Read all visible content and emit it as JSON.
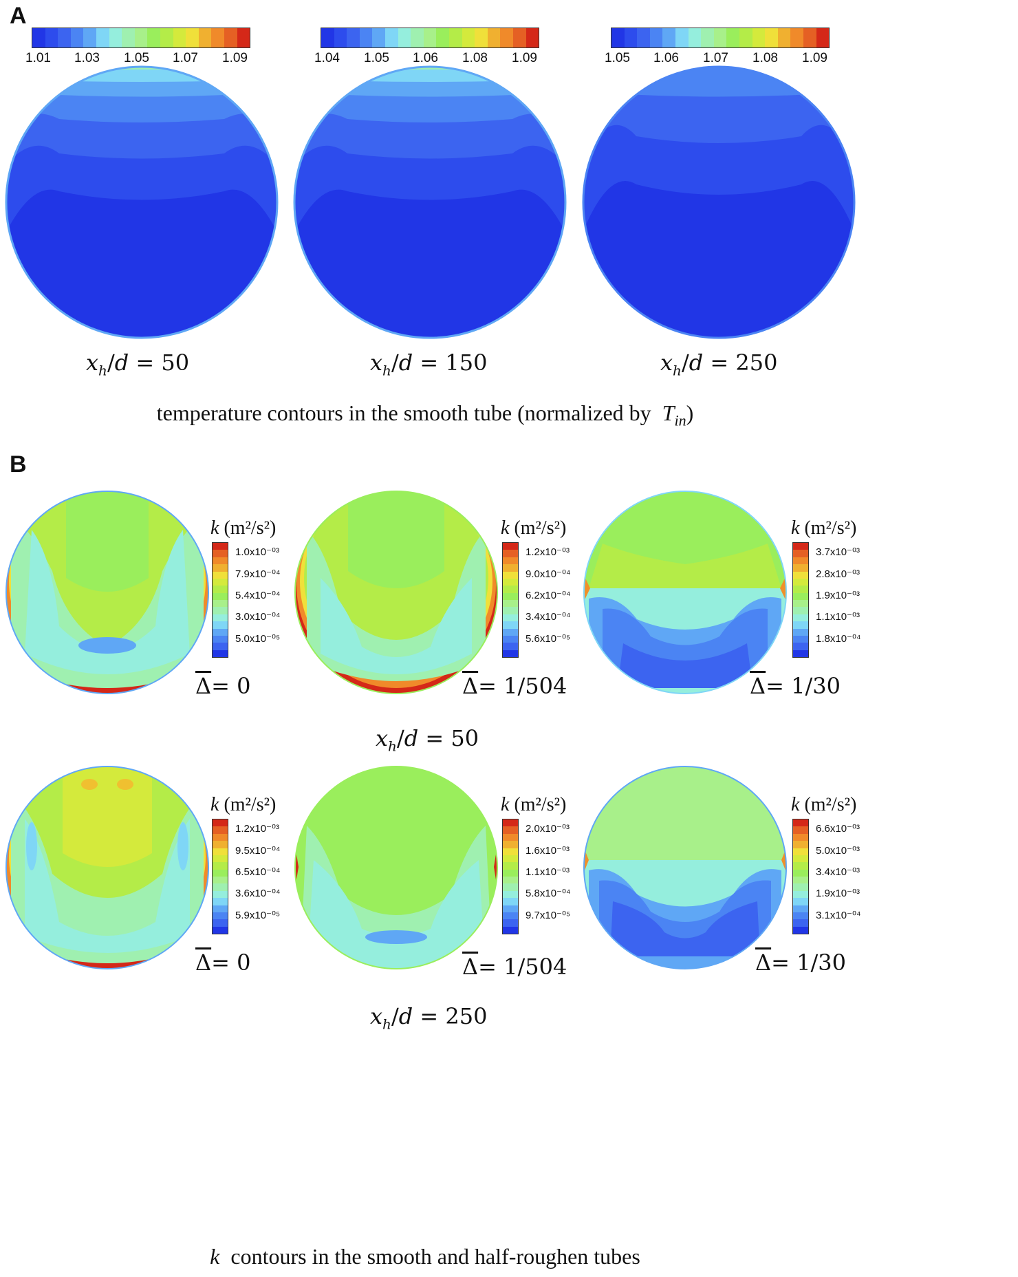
{
  "panel_a": {
    "letter": "A",
    "caption": "temperature contours in the smooth tube (normalized by",
    "caption_var": "T",
    "caption_sub": "in",
    "caption_end": ")",
    "plots": [
      {
        "ticks": [
          "1.01",
          "1.03",
          "1.05",
          "1.07",
          "1.09"
        ],
        "label": "x_h/d = 50",
        "label_num": "50"
      },
      {
        "ticks": [
          "1.04",
          "1.05",
          "1.06",
          "1.08",
          "1.09"
        ],
        "label": "x_h/d = 150",
        "label_num": "150"
      },
      {
        "ticks": [
          "1.05",
          "1.06",
          "1.07",
          "1.08",
          "1.09"
        ],
        "label": "x_h/d = 250",
        "label_num": "250"
      }
    ]
  },
  "panel_b": {
    "letter": "B",
    "unit_label": "k",
    "unit": "(m²/s²)",
    "caption_var": "k",
    "caption": "contours in the smooth and half-roughen tubes",
    "rows": [
      {
        "label_num": "50",
        "plots": [
          {
            "delta": "0",
            "ticks": [
              "1.0x10⁻⁰³",
              "7.9x10⁻⁰⁴",
              "5.4x10⁻⁰⁴",
              "3.0x10⁻⁰⁴",
              "5.0x10⁻⁰⁵"
            ]
          },
          {
            "delta": "1/504",
            "ticks": [
              "1.2x10⁻⁰³",
              "9.0x10⁻⁰⁴",
              "6.2x10⁻⁰⁴",
              "3.4x10⁻⁰⁴",
              "5.6x10⁻⁰⁵"
            ]
          },
          {
            "delta": "1/30",
            "ticks": [
              "3.7x10⁻⁰³",
              "2.8x10⁻⁰³",
              "1.9x10⁻⁰³",
              "1.1x10⁻⁰³",
              "1.8x10⁻⁰⁴"
            ]
          }
        ]
      },
      {
        "label_num": "250",
        "plots": [
          {
            "delta": "0",
            "ticks": [
              "1.2x10⁻⁰³",
              "9.5x10⁻⁰⁴",
              "6.5x10⁻⁰⁴",
              "3.6x10⁻⁰⁴",
              "5.9x10⁻⁰⁵"
            ]
          },
          {
            "delta": "1/504",
            "ticks": [
              "2.0x10⁻⁰³",
              "1.6x10⁻⁰³",
              "1.1x10⁻⁰³",
              "5.8x10⁻⁰⁴",
              "9.7x10⁻⁰⁵"
            ]
          },
          {
            "delta": "1/30",
            "ticks": [
              "6.6x10⁻⁰³",
              "5.0x10⁻⁰³",
              "3.4x10⁻⁰³",
              "1.9x10⁻⁰³",
              "3.1x10⁻⁰⁴"
            ]
          }
        ]
      }
    ]
  },
  "colors": {
    "deep_blue": "#1f3ee6",
    "blue": "#3a64ee",
    "light_blue": "#5fa7f5",
    "cyan": "#8fe8f0",
    "green": "#96f05a",
    "yellow": "#f0e53a",
    "orange": "#f0902a",
    "red": "#d42818"
  }
}
